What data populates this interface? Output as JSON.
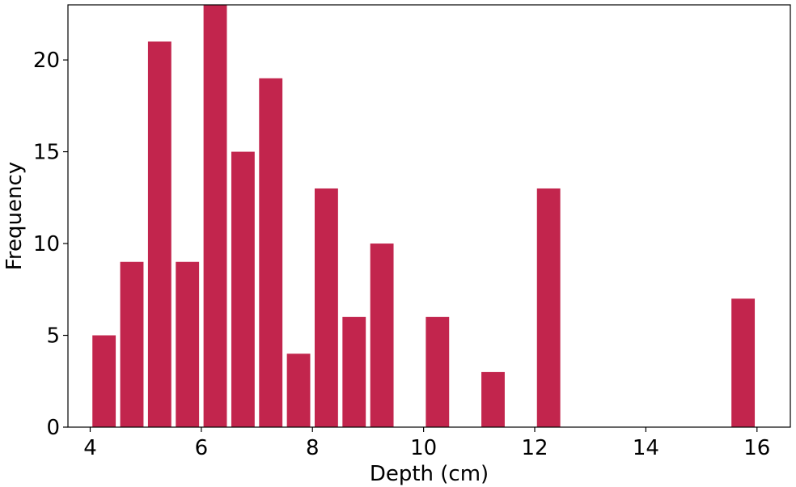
{
  "chart_data": {
    "type": "bar",
    "title": "",
    "xlabel": "Depth (cm)",
    "ylabel": "Frequency",
    "xlim": [
      3.6,
      16.6
    ],
    "ylim": [
      0,
      23
    ],
    "xticks": [
      4,
      6,
      8,
      10,
      12,
      14,
      16
    ],
    "yticks": [
      0,
      5,
      10,
      15,
      20
    ],
    "bar_width": 0.42,
    "bar_color": "#c2254d",
    "grid": false,
    "legend": "none",
    "bars": [
      {
        "x": 4.25,
        "value": 5
      },
      {
        "x": 4.75,
        "value": 9
      },
      {
        "x": 5.25,
        "value": 21
      },
      {
        "x": 5.75,
        "value": 9
      },
      {
        "x": 6.25,
        "value": 23
      },
      {
        "x": 6.75,
        "value": 15
      },
      {
        "x": 7.25,
        "value": 19
      },
      {
        "x": 7.75,
        "value": 4
      },
      {
        "x": 8.25,
        "value": 13
      },
      {
        "x": 8.75,
        "value": 6
      },
      {
        "x": 9.25,
        "value": 10
      },
      {
        "x": 10.25,
        "value": 6
      },
      {
        "x": 11.25,
        "value": 3
      },
      {
        "x": 12.25,
        "value": 13
      },
      {
        "x": 15.75,
        "value": 7
      }
    ]
  }
}
